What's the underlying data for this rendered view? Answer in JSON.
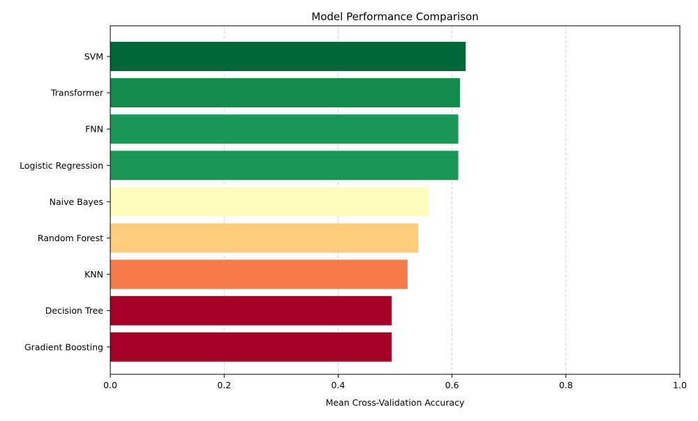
{
  "chart_data": {
    "type": "bar",
    "orientation": "horizontal",
    "title": "Model Performance Comparison",
    "xlabel": "Mean Cross-Validation Accuracy",
    "ylabel": "",
    "xlim": [
      0.0,
      1.0
    ],
    "xticks": [
      "0.0",
      "0.2",
      "0.4",
      "0.6",
      "0.8",
      "1.0"
    ],
    "grid": "x-axis dashed",
    "colormap": "red-yellow-green",
    "categories": [
      "SVM",
      "Transformer",
      "FNN",
      "Logistic Regression",
      "Naive Bayes",
      "Random Forest",
      "KNN",
      "Decision Tree",
      "Gradient Boosting"
    ],
    "values": [
      0.624,
      0.614,
      0.611,
      0.611,
      0.559,
      0.541,
      0.522,
      0.494,
      0.494
    ],
    "colors": [
      "#006837",
      "#138b4e",
      "#1b9757",
      "#1b9757",
      "#fefdbd",
      "#fecd7d",
      "#f57b4b",
      "#a50026",
      "#a50026"
    ]
  }
}
